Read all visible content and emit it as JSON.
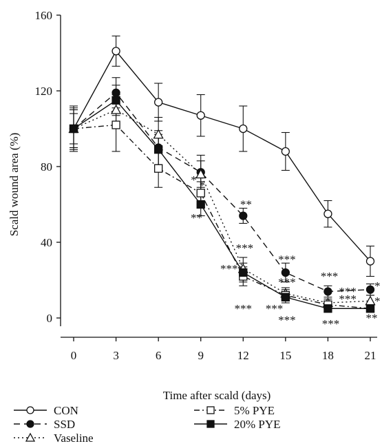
{
  "chart_data": {
    "type": "line",
    "xlabel": "Time after scald (days)",
    "ylabel": "Scald wound area (%)",
    "xlim": [
      -1,
      22
    ],
    "ylim": [
      -7,
      160
    ],
    "x_ticks": [
      0,
      3,
      6,
      9,
      12,
      15,
      18,
      21
    ],
    "x_tick_labels": [
      "0",
      "3",
      "6",
      "9",
      "12",
      "15",
      "18",
      "21"
    ],
    "y_ticks": [
      0,
      40,
      80,
      120,
      160
    ],
    "y_tick_labels": [
      "0",
      "40",
      "80",
      "120",
      "160"
    ],
    "grid": false,
    "legend_position": "bottom-left",
    "x": [
      0,
      3,
      6,
      9,
      12,
      15,
      18,
      21
    ],
    "series": [
      {
        "name": "CON",
        "marker": "open-circle",
        "line": "solid",
        "values": [
          100,
          141,
          114,
          107,
          100,
          88,
          55,
          30
        ],
        "errors": [
          12,
          8,
          10,
          11,
          12,
          10,
          7,
          8
        ]
      },
      {
        "name": "SSD",
        "marker": "filled-circle",
        "line": "dashed",
        "values": [
          100,
          119,
          90,
          77,
          54,
          24,
          14,
          15
        ],
        "errors": [
          10,
          8,
          9,
          9,
          4,
          5,
          3,
          3
        ]
      },
      {
        "name": "Vaseline",
        "marker": "open-triangle",
        "line": "dotted",
        "values": [
          100,
          110,
          97,
          76,
          26,
          13,
          8,
          9
        ],
        "errors": [
          8,
          8,
          9,
          7,
          6,
          3,
          2,
          3
        ]
      },
      {
        "name": "5% PYE",
        "marker": "open-square",
        "line": "dash-dot",
        "values": [
          100,
          102,
          79,
          66,
          22,
          12,
          7,
          5
        ],
        "errors": [
          11,
          14,
          10,
          6,
          5,
          3,
          2,
          2
        ]
      },
      {
        "name": "20% PYE",
        "marker": "filled-square",
        "line": "solid",
        "values": [
          100,
          115,
          89,
          60,
          24,
          11,
          5,
          5
        ],
        "errors": [
          10,
          8,
          8,
          6,
          5,
          3,
          2,
          2
        ]
      }
    ],
    "annotations": [
      {
        "text": "*",
        "x": 8.5,
        "y": 71
      },
      {
        "text": "*",
        "x": 9.1,
        "y": 68
      },
      {
        "text": "**",
        "x": 8.7,
        "y": 51
      },
      {
        "text": "**",
        "x": 12.2,
        "y": 58
      },
      {
        "text": "***",
        "x": 12.1,
        "y": 35
      },
      {
        "text": "***",
        "x": 11.0,
        "y": 24
      },
      {
        "text": "***",
        "x": 12.0,
        "y": 3
      },
      {
        "text": "***",
        "x": 14.2,
        "y": 3
      },
      {
        "text": "***",
        "x": 15.1,
        "y": 29
      },
      {
        "text": "***",
        "x": 15.1,
        "y": 17
      },
      {
        "text": "***",
        "x": 15.1,
        "y": -3
      },
      {
        "text": "***",
        "x": 18.1,
        "y": 20
      },
      {
        "text": "***",
        "x": 19.4,
        "y": 12
      },
      {
        "text": "***",
        "x": 19.4,
        "y": 8
      },
      {
        "text": "***",
        "x": 18.2,
        "y": -5
      },
      {
        "text": "*",
        "x": 21.5,
        "y": 15
      },
      {
        "text": "*",
        "x": 21.5,
        "y": 7
      },
      {
        "text": "**",
        "x": 21.1,
        "y": -2
      }
    ]
  }
}
